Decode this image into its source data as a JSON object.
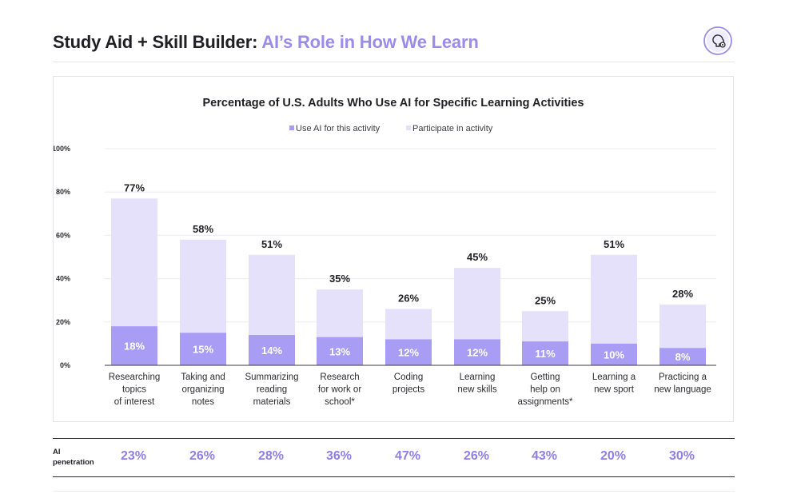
{
  "header": {
    "title_main": "Study Aid + Skill Builder: ",
    "title_accent": "AI’s Role in How We Learn"
  },
  "colors": {
    "use_ai": "#a89cf4",
    "participate": "#e5e1fb",
    "accent": "#9b8bea",
    "penetration": "#8f7ee6"
  },
  "chart_data": {
    "type": "bar",
    "title": "Percentage of U.S. Adults Who Use AI for Specific Learning Activities",
    "stacking": "overlapping",
    "categories": [
      [
        "Researching",
        "topics",
        "of interest"
      ],
      [
        "Taking and",
        "organizing",
        "notes"
      ],
      [
        "Summarizing",
        "reading",
        "materials"
      ],
      [
        "Research",
        "for work or",
        "school*"
      ],
      [
        "Coding",
        "projects"
      ],
      [
        "Learning",
        "new skills"
      ],
      [
        "Getting",
        "help on",
        "assignments*"
      ],
      [
        "Learning a",
        "new sport"
      ],
      [
        "Practicing a",
        "new language"
      ]
    ],
    "series": [
      {
        "name": "Use AI for this activity",
        "values": [
          18,
          15,
          14,
          13,
          12,
          12,
          11,
          10,
          8
        ],
        "labels": [
          "18%",
          "15%",
          "14%",
          "13%",
          "12%",
          "12%",
          "11%",
          "10%",
          "8%"
        ]
      },
      {
        "name": "Participate in activity",
        "values": [
          77,
          58,
          51,
          35,
          26,
          45,
          25,
          51,
          28
        ],
        "labels": [
          "77%",
          "58%",
          "51%",
          "35%",
          "26%",
          "45%",
          "25%",
          "51%",
          "28%"
        ]
      }
    ],
    "yticks": [
      "0%",
      "20%",
      "40%",
      "60%",
      "80%",
      "100%"
    ],
    "ylim": [
      0,
      100
    ],
    "grid": true,
    "legend": "top-center"
  },
  "penetration": {
    "label_line1": "AI",
    "label_line2": "penetration",
    "values": [
      "23%",
      "26%",
      "28%",
      "36%",
      "47%",
      "26%",
      "43%",
      "20%",
      "30%"
    ]
  }
}
